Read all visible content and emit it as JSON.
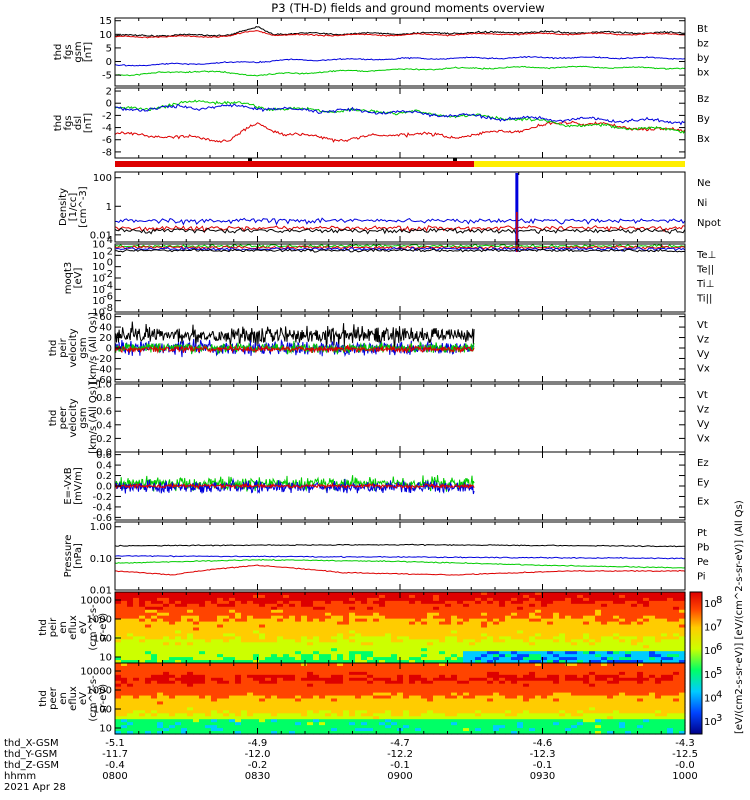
{
  "title": "P3 (TH-D) fields and ground moments overview",
  "colorbar_label": "[eV/(cm2-s-sr-eV)] [eV/(cm^2-s-sr-eV)] (All Qs)",
  "chart_data": [
    {
      "type": "line",
      "panel": "fgs",
      "ylabel_lines": [
        "thd",
        "fgs",
        "gsm",
        "[nT]"
      ],
      "yticks": [
        -5,
        0,
        5,
        10,
        15
      ],
      "ylim": [
        -9,
        16
      ],
      "legend": [
        {
          "name": "Bt",
          "color": "#000000"
        },
        {
          "name": "bz",
          "color": "#dd0000"
        },
        {
          "name": "by",
          "color": "#00cc00"
        },
        {
          "name": "bx",
          "color": "#0000dd"
        }
      ],
      "series": [
        {
          "name": "bt",
          "color": "#000000",
          "base": 10.0,
          "noise": 0.4,
          "x": [
            0,
            0.2,
            0.25,
            0.28,
            0.5,
            0.75,
            1
          ],
          "y": [
            9.5,
            9.8,
            12.5,
            10.2,
            10.3,
            10.8,
            10.5
          ]
        },
        {
          "name": "bz",
          "color": "#dd0000",
          "base": 9.5,
          "noise": 0.3,
          "x": [
            0,
            0.2,
            0.25,
            0.28,
            0.5,
            0.75,
            1
          ],
          "y": [
            9.0,
            9.3,
            11.5,
            9.7,
            9.8,
            10.2,
            10.0
          ]
        },
        {
          "name": "bx",
          "color": "#0000dd",
          "base": 1.0,
          "noise": 0.3,
          "x": [
            0,
            0.2,
            0.3,
            0.5,
            0.75,
            1
          ],
          "y": [
            -1.5,
            -0.5,
            0.5,
            1.0,
            1.5,
            1.2
          ]
        },
        {
          "name": "by",
          "color": "#00cc00",
          "base": -3.0,
          "noise": 0.3,
          "x": [
            0,
            0.15,
            0.25,
            0.4,
            0.6,
            0.8,
            1
          ],
          "y": [
            -5.0,
            -3.5,
            -5.0,
            -3.5,
            -2.5,
            -2.0,
            -2.5
          ]
        }
      ]
    },
    {
      "type": "line",
      "panel": "fgs-dsl",
      "ylabel_lines": [
        "thd",
        "fgs",
        "dsl",
        "[nT]"
      ],
      "yticks": [
        -8,
        -6,
        -4,
        -2,
        0,
        2
      ],
      "ylim": [
        -9,
        2.5
      ],
      "legend": [
        {
          "name": "Bz",
          "color": "#dd0000"
        },
        {
          "name": "By",
          "color": "#00cc00"
        },
        {
          "name": "Bx",
          "color": "#0000dd"
        }
      ],
      "series": [
        {
          "name": "Bz",
          "color": "#dd0000",
          "x": [
            0,
            0.1,
            0.2,
            0.25,
            0.3,
            0.4,
            0.5,
            0.6,
            0.7,
            0.8,
            0.9,
            1
          ],
          "y": [
            -5.0,
            -5.5,
            -6.0,
            -3.5,
            -5.0,
            -6.0,
            -5.0,
            -5.5,
            -4.5,
            -3.0,
            -4.0,
            -4.5
          ]
        },
        {
          "name": "By",
          "color": "#00cc00",
          "x": [
            0,
            0.1,
            0.15,
            0.2,
            0.3,
            0.5,
            0.7,
            0.8,
            0.9,
            1
          ],
          "y": [
            -1.0,
            -0.5,
            0.5,
            0.0,
            -1.0,
            -1.5,
            -2.5,
            -3.5,
            -4.0,
            -4.5
          ]
        },
        {
          "name": "Bx",
          "color": "#0000dd",
          "x": [
            0,
            0.2,
            0.3,
            0.5,
            0.7,
            1
          ],
          "y": [
            -1.0,
            -0.5,
            -1.0,
            -1.5,
            -2.5,
            -3.0
          ]
        }
      ]
    },
    {
      "type": "line",
      "panel": "density",
      "ylabel_lines": [
        "Density",
        "[1/cc]",
        "[cm^-3]"
      ],
      "yticks": [
        "0.01",
        "1",
        "100"
      ],
      "legend": [
        {
          "name": "Ne",
          "color": "#dd0000"
        },
        {
          "name": "Ni",
          "color": "#000000"
        },
        {
          "name": "Npot",
          "color": "#0000dd"
        }
      ],
      "series": [
        {
          "name": "Npot",
          "color": "#0000dd",
          "value": 0.1
        },
        {
          "name": "Ne",
          "color": "#dd0000",
          "value": 0.03
        },
        {
          "name": "Ni",
          "color": "#000000",
          "value": 0.02
        }
      ]
    },
    {
      "type": "line",
      "panel": "temperature",
      "ylabel_lines": [
        "moqt3",
        "[eV]"
      ],
      "yticks": [
        "10^-8",
        "10^-6",
        "10^-4",
        "10^-2",
        "10^0",
        "10^2",
        "10^4"
      ],
      "legend": [
        {
          "name": "Te⊥",
          "color": "#dd0000"
        },
        {
          "name": "Te||",
          "color": "#000000"
        },
        {
          "name": "Ti⊥",
          "color": "#0000dd"
        },
        {
          "name": "Ti||",
          "color": "#00cc00"
        }
      ]
    },
    {
      "type": "line",
      "panel": "ion-velocity",
      "ylabel_lines": [
        "thd",
        "peir",
        "velocity",
        "gsm",
        "[km/s (All Qs)]"
      ],
      "yticks": [
        -60,
        -40,
        -20,
        0,
        20,
        40,
        60
      ],
      "ylim": [
        -65,
        65
      ],
      "data_end_fraction": 0.63,
      "legend": [
        {
          "name": "Vt",
          "color": "#000000"
        },
        {
          "name": "Vz",
          "color": "#dd0000"
        },
        {
          "name": "Vy",
          "color": "#00cc00"
        },
        {
          "name": "Vx",
          "color": "#0000dd"
        }
      ],
      "series": [
        {
          "name": "Vt",
          "color": "#000000",
          "base": 25,
          "noise": 18
        },
        {
          "name": "Vx",
          "color": "#0000dd",
          "base": 0,
          "noise": 14
        },
        {
          "name": "Vy",
          "color": "#00cc00",
          "base": 0,
          "noise": 10
        },
        {
          "name": "Vz",
          "color": "#dd0000",
          "base": -2,
          "noise": 6
        }
      ]
    },
    {
      "type": "line",
      "panel": "electron-velocity",
      "ylabel_lines": [
        "thd",
        "peer",
        "velocity",
        "gsm",
        "[km/s (All Qs)]"
      ],
      "yticks": [
        0.0,
        0.2,
        0.4,
        0.6,
        0.8,
        1.0
      ],
      "legend": [
        {
          "name": "Vt",
          "color": "#000000"
        },
        {
          "name": "Vz",
          "color": "#dd0000"
        },
        {
          "name": "Vy",
          "color": "#00cc00"
        },
        {
          "name": "Vx",
          "color": "#0000dd"
        }
      ]
    },
    {
      "type": "line",
      "panel": "e-field",
      "ylabel_lines": [
        "E=-VxB",
        "[mV/m]"
      ],
      "yticks": [
        -0.6,
        -0.4,
        -0.2,
        0.0,
        0.2,
        0.4,
        0.6
      ],
      "ylim": [
        -0.65,
        0.65
      ],
      "data_end_fraction": 0.63,
      "legend": [
        {
          "name": "Ez",
          "color": "#dd0000"
        },
        {
          "name": "Ey",
          "color": "#00cc00"
        },
        {
          "name": "Ex",
          "color": "#0000dd"
        }
      ],
      "series": [
        {
          "name": "Ey",
          "color": "#00cc00",
          "base": 0.05,
          "noise": 0.13
        },
        {
          "name": "Ex",
          "color": "#0000dd",
          "base": -0.02,
          "noise": 0.12
        },
        {
          "name": "Ez",
          "color": "#dd0000",
          "base": 0.0,
          "noise": 0.04
        }
      ]
    },
    {
      "type": "line",
      "panel": "pressure",
      "ylabel_lines": [
        "Pressure",
        "[nPa]"
      ],
      "yticks": [
        "0.01",
        "0.10",
        "1.00"
      ],
      "ylog": true,
      "legend": [
        {
          "name": "Pt",
          "color": "#000000"
        },
        {
          "name": "Pb",
          "color": "#dd0000"
        },
        {
          "name": "Pe",
          "color": "#00cc00"
        },
        {
          "name": "Pi",
          "color": "#0000dd"
        }
      ],
      "series": [
        {
          "name": "Pt",
          "color": "#000000",
          "x": [
            0,
            0.5,
            1
          ],
          "y": [
            0.25,
            0.27,
            0.24
          ]
        },
        {
          "name": "Pi",
          "color": "#0000dd",
          "x": [
            0,
            0.5,
            1
          ],
          "y": [
            0.12,
            0.11,
            0.1
          ]
        },
        {
          "name": "Pe",
          "color": "#00cc00",
          "x": [
            0,
            0.25,
            0.5,
            0.75,
            1
          ],
          "y": [
            0.07,
            0.09,
            0.08,
            0.06,
            0.05
          ]
        },
        {
          "name": "Pb",
          "color": "#dd0000",
          "x": [
            0,
            0.1,
            0.25,
            0.4,
            0.6,
            0.8,
            1
          ],
          "y": [
            0.04,
            0.03,
            0.06,
            0.035,
            0.03,
            0.04,
            0.04
          ]
        }
      ]
    },
    {
      "type": "heatmap",
      "panel": "ion-spectrogram",
      "ylabel_lines": [
        "thd",
        "peir",
        "en",
        "eflux",
        "eV",
        "(cm^2-s-",
        "sr-eV)"
      ],
      "yticks": [
        "10",
        "100",
        "1000",
        "10000"
      ]
    },
    {
      "type": "heatmap",
      "panel": "electron-spectrogram",
      "ylabel_lines": [
        "thd",
        "peer",
        "en",
        "eflux",
        "eV",
        "(cm^2-s-",
        "sr-eV)"
      ],
      "yticks": [
        "10",
        "100",
        "1000",
        "10000"
      ]
    }
  ],
  "colorbar": {
    "ticks": [
      "10^3",
      "10^4",
      "10^5",
      "10^6",
      "10^7",
      "10^8"
    ]
  },
  "time_axis": {
    "rows": [
      {
        "label": "thd_X-GSM",
        "values": [
          "-5.1",
          "-4.9",
          "-4.7",
          "-4.6",
          "-4.3"
        ]
      },
      {
        "label": "thd_Y-GSM",
        "values": [
          "-11.7",
          "-12.0",
          "-12.2",
          "-12.3",
          "-12.5"
        ]
      },
      {
        "label": "thd_Z-GSM",
        "values": [
          "-0.4",
          "-0.2",
          "-0.1",
          "-0.1",
          "-0.0"
        ]
      },
      {
        "label": "hhmm",
        "values": [
          "0800",
          "0830",
          "0900",
          "0930",
          "1000"
        ]
      }
    ],
    "date": "2021 Apr 28"
  },
  "colors": {
    "red": "#dd0000",
    "yellow": "#ffee00",
    "green": "#00cc00",
    "blue": "#0000dd"
  }
}
